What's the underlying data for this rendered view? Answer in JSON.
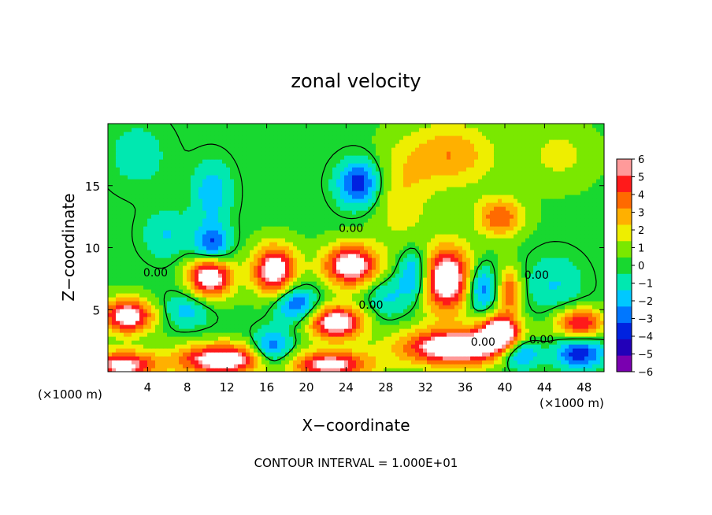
{
  "chart_data": {
    "type": "heatmap",
    "title": "zonal velocity",
    "xlabel": "X−coordinate",
    "ylabel": "Z−coordinate",
    "x_unit_left": "(×1000 m)",
    "x_unit_right": "(×1000 m)",
    "xlim": [
      0,
      50
    ],
    "ylim": [
      0,
      20
    ],
    "x_ticks": [
      4,
      8,
      12,
      16,
      20,
      24,
      28,
      32,
      36,
      40,
      44,
      48
    ],
    "x_tick_labels": [
      "4",
      "8",
      "12",
      "16",
      "20",
      "24",
      "28",
      "32",
      "36",
      "40",
      "44",
      "48"
    ],
    "y_ticks": [
      5,
      10,
      15
    ],
    "y_tick_labels": [
      "5",
      "10",
      "15"
    ],
    "colorbar": {
      "levels": [
        -6,
        -5,
        -4,
        -3,
        -2,
        -1,
        0,
        1,
        2,
        3,
        4,
        5,
        6
      ],
      "labels": [
        "−6",
        "−5",
        "−4",
        "−3",
        "−2",
        "−1",
        "0",
        "1",
        "2",
        "3",
        "4",
        "5",
        "6"
      ],
      "colors": [
        "#7a00b0",
        "#2200b8",
        "#0022e0",
        "#0077ff",
        "#00c8ff",
        "#00e8b0",
        "#18d830",
        "#7ae800",
        "#eeee00",
        "#ffb000",
        "#ff6a00",
        "#ff1a1a",
        "#ff9a9a"
      ],
      "over_color": "#ffffff"
    },
    "contour_labels": [
      {
        "text": "0.00",
        "x": 24.5,
        "y": 11.6
      },
      {
        "text": "0.00",
        "x": 4.8,
        "y": 8.0
      },
      {
        "text": "0.00",
        "x": 26.5,
        "y": 5.4
      },
      {
        "text": "0.00",
        "x": 37.8,
        "y": 2.4
      },
      {
        "text": "0.00",
        "x": 43.2,
        "y": 7.8
      },
      {
        "text": "0.00",
        "x": 43.7,
        "y": 2.6
      }
    ],
    "blobs": [
      {
        "x": 34.5,
        "y": 17.5,
        "rx": 4.5,
        "ry": 2.6,
        "v": 3.2
      },
      {
        "x": 39.5,
        "y": 12.5,
        "rx": 2.4,
        "ry": 1.6,
        "v": 4.2
      },
      {
        "x": 45.5,
        "y": 17.5,
        "rx": 3.5,
        "ry": 2.5,
        "v": 1.6
      },
      {
        "x": 29.5,
        "y": 14.0,
        "rx": 3.0,
        "ry": 4.0,
        "v": 2.0
      },
      {
        "x": 25.3,
        "y": 15.2,
        "rx": 2.2,
        "ry": 1.9,
        "v": -4.5
      },
      {
        "x": 10.5,
        "y": 14.5,
        "rx": 2.0,
        "ry": 2.5,
        "v": -2.5
      },
      {
        "x": 10.5,
        "y": 10.2,
        "rx": 1.8,
        "ry": 1.6,
        "v": -4.2
      },
      {
        "x": 3.0,
        "y": 17.5,
        "rx": 3.5,
        "ry": 3.0,
        "v": -1.2
      },
      {
        "x": 10.3,
        "y": 7.7,
        "rx": 2.2,
        "ry": 1.7,
        "v": 7.5
      },
      {
        "x": 16.8,
        "y": 8.2,
        "rx": 2.2,
        "ry": 2.0,
        "v": 7.2
      },
      {
        "x": 24.5,
        "y": 8.6,
        "rx": 2.8,
        "ry": 1.7,
        "v": 7.2
      },
      {
        "x": 34.0,
        "y": 7.5,
        "rx": 3.0,
        "ry": 2.6,
        "v": 7.8
      },
      {
        "x": 31.0,
        "y": 7.8,
        "rx": 1.7,
        "ry": 2.2,
        "v": -5.0
      },
      {
        "x": 37.5,
        "y": 6.8,
        "rx": 1.5,
        "ry": 2.0,
        "v": -4.5
      },
      {
        "x": 40.5,
        "y": 6.5,
        "rx": 1.2,
        "ry": 2.0,
        "v": 4.0
      },
      {
        "x": 23.0,
        "y": 4.0,
        "rx": 2.8,
        "ry": 1.4,
        "v": 7.2
      },
      {
        "x": 19.0,
        "y": 5.5,
        "rx": 2.2,
        "ry": 1.5,
        "v": -4.0
      },
      {
        "x": 39.5,
        "y": 3.2,
        "rx": 2.0,
        "ry": 1.4,
        "v": 7.2
      },
      {
        "x": 35.0,
        "y": 2.0,
        "rx": 5.5,
        "ry": 1.5,
        "v": 7.8
      },
      {
        "x": 41.5,
        "y": 1.5,
        "rx": 2.0,
        "ry": 1.2,
        "v": -4.5
      },
      {
        "x": 2.0,
        "y": 4.5,
        "rx": 2.6,
        "ry": 1.4,
        "v": 7.0
      },
      {
        "x": 8.0,
        "y": 5.0,
        "rx": 2.5,
        "ry": 1.5,
        "v": -2.2
      },
      {
        "x": 1.5,
        "y": 0.5,
        "rx": 3.5,
        "ry": 1.2,
        "v": 6.5
      },
      {
        "x": 11.5,
        "y": 1.0,
        "rx": 4.5,
        "ry": 1.3,
        "v": 7.3
      },
      {
        "x": 22.5,
        "y": 0.6,
        "rx": 4.0,
        "ry": 1.1,
        "v": 6.5
      },
      {
        "x": 16.5,
        "y": 1.8,
        "rx": 2.0,
        "ry": 1.5,
        "v": -4.2
      },
      {
        "x": 47.5,
        "y": 4.0,
        "rx": 2.5,
        "ry": 1.2,
        "v": 5.5
      },
      {
        "x": 47.5,
        "y": 1.5,
        "rx": 2.5,
        "ry": 1.2,
        "v": -4.5
      },
      {
        "x": 45.0,
        "y": 7.0,
        "rx": 3.0,
        "ry": 2.5,
        "v": -1.8
      },
      {
        "x": 28.0,
        "y": 6.0,
        "rx": 2.0,
        "ry": 1.8,
        "v": -2.0
      },
      {
        "x": 6.0,
        "y": 11.0,
        "rx": 2.5,
        "ry": 2.0,
        "v": -1.8
      }
    ]
  },
  "footer": {
    "contour_interval": "CONTOUR INTERVAL = 1.000E+01"
  }
}
